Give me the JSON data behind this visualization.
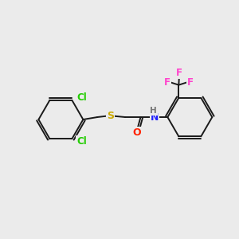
{
  "bg_color": "#ebebeb",
  "bond_color": "#1a1a1a",
  "bond_width": 1.4,
  "atom_colors": {
    "Cl": "#22cc00",
    "S": "#ccaa00",
    "O": "#ff2200",
    "N": "#2222ff",
    "H": "#777777",
    "F": "#ff44cc",
    "C": "#1a1a1a"
  },
  "font_size": 8.5,
  "fig_size": [
    3.0,
    3.0
  ],
  "dpi": 100
}
